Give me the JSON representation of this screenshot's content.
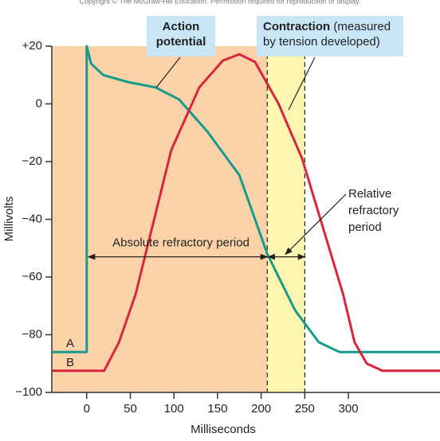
{
  "chart_data": {
    "type": "line",
    "copyright": "Copyright © The McGraw-Hill Education. Permission required for reproduction or display.",
    "xlabel": "Milliseconds",
    "ylabel": "Millivolts",
    "xlim": [
      -40,
      405
    ],
    "ylim": [
      -100,
      20
    ],
    "xticks": [
      0,
      50,
      100,
      150,
      200,
      250,
      300
    ],
    "yticks": [
      {
        "value": 20,
        "label": "+20"
      },
      0,
      {
        "value": -20,
        "label": "−20"
      },
      {
        "value": -40,
        "label": "−40"
      },
      {
        "value": -60,
        "label": "−60"
      },
      {
        "value": -80,
        "label": "−80"
      },
      {
        "value": -100,
        "label": "−100"
      }
    ],
    "series": [
      {
        "name": "A",
        "color": "#169a8c",
        "x": [
          -40,
          0,
          0,
          5,
          19,
          47,
          79,
          106,
          138,
          175,
          207,
          239,
          266,
          290,
          405
        ],
        "values": [
          -86,
          -86,
          20,
          14,
          10,
          7.6,
          5.7,
          1.5,
          -9.5,
          -24.7,
          -52,
          -71.6,
          -82.6,
          -86,
          -86
        ]
      },
      {
        "name": "B",
        "color": "#d9263e",
        "x": [
          -40,
          20,
          37,
          56,
          74,
          97,
          129,
          156,
          175,
          193,
          220,
          247,
          275,
          294,
          307,
          321,
          339,
          405
        ],
        "values": [
          -92.5,
          -92.5,
          -82.6,
          -66,
          -44,
          -16,
          5.7,
          15,
          17.2,
          14.5,
          0,
          -19,
          -47,
          -66,
          -82.6,
          -90,
          -92.5,
          -92.5
        ]
      }
    ],
    "absolute_refractory": {
      "label": "Absolute refractory period",
      "x": [
        0,
        207
      ],
      "y": -53,
      "color": "#fcd3a8"
    },
    "relative_refractory": {
      "label": [
        "Relative",
        "refractory",
        "period"
      ],
      "x": [
        207,
        250
      ],
      "y": -53,
      "color": "#fdf5b0"
    },
    "callouts": {
      "action_potential": [
        "Action",
        "potential"
      ],
      "contraction": {
        "bold": "Contraction",
        "rest": " (measured",
        "line2": "by tension developed)"
      }
    }
  }
}
